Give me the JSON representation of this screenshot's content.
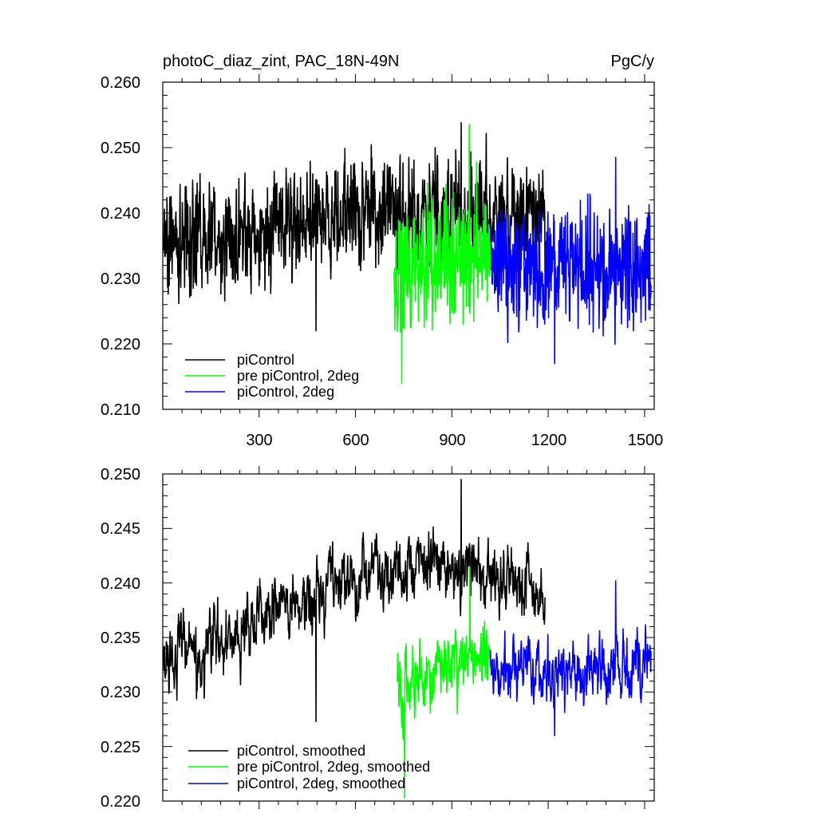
{
  "chart_data": [
    {
      "type": "line",
      "title": "photoC_diaz_zint, PAC_18N-49N",
      "units": "PgC/y",
      "xlim": [
        0,
        1530
      ],
      "ylim": [
        0.21,
        0.26
      ],
      "xticks": [
        300,
        600,
        900,
        1200,
        1500
      ],
      "xtick_labels": [
        "300",
        "600",
        "900",
        "1200",
        "1500"
      ],
      "yticks": [
        0.21,
        0.22,
        0.23,
        0.24,
        0.25,
        0.26
      ],
      "ytick_labels": [
        "0.210",
        "0.220",
        "0.230",
        "0.240",
        "0.250",
        "0.260"
      ],
      "legend_position": "bottom-left",
      "series": [
        {
          "name": "piControl",
          "color": "#000000",
          "x_start": 1,
          "x_end": 1190,
          "mean": 0.2375,
          "amplitude": 0.0055,
          "range": [
            0.222,
            0.2538
          ],
          "trend": [
            [
              0,
              0.2355
            ],
            [
              300,
              0.237
            ],
            [
              600,
              0.24
            ],
            [
              900,
              0.2405
            ],
            [
              1190,
              0.2385
            ]
          ]
        },
        {
          "name": "pre piControl, 2deg",
          "color": "#00ff00",
          "x_start": 720,
          "x_end": 1020,
          "mean": 0.232,
          "amplitude": 0.0065,
          "range": [
            0.214,
            0.2535
          ],
          "trend": [
            [
              720,
              0.231
            ],
            [
              870,
              0.233
            ],
            [
              1020,
              0.2345
            ]
          ]
        },
        {
          "name": "piControl, 2deg",
          "color": "#0000ff",
          "x_start": 1020,
          "x_end": 1520,
          "mean": 0.2315,
          "amplitude": 0.0058,
          "range": [
            0.217,
            0.2485
          ],
          "trend": [
            [
              1020,
              0.232
            ],
            [
              1270,
              0.2315
            ],
            [
              1520,
              0.2315
            ]
          ]
        }
      ]
    },
    {
      "type": "line",
      "title": "",
      "xlim": [
        0,
        1530
      ],
      "ylim": [
        0.22,
        0.25
      ],
      "xticks": [
        300,
        600,
        900,
        1200,
        1500
      ],
      "xtick_labels": [],
      "yticks": [
        0.22,
        0.225,
        0.23,
        0.235,
        0.24,
        0.245,
        0.25
      ],
      "ytick_labels": [
        "0.220",
        "0.225",
        "0.230",
        "0.235",
        "0.240",
        "0.245",
        "0.250"
      ],
      "legend_position": "bottom-left",
      "series": [
        {
          "name": "piControl, smoothed",
          "color": "#000000",
          "x_start": 1,
          "x_end": 1190,
          "mean": 0.2375,
          "amplitude": 0.0027,
          "range": [
            0.2273,
            0.2495
          ],
          "trend": [
            [
              0,
              0.2335
            ],
            [
              120,
              0.2335
            ],
            [
              300,
              0.237
            ],
            [
              500,
              0.2385
            ],
            [
              650,
              0.241
            ],
            [
              900,
              0.2415
            ],
            [
              1100,
              0.24
            ],
            [
              1190,
              0.238
            ]
          ]
        },
        {
          "name": "pre piControl, 2deg, smoothed",
          "color": "#00ff00",
          "x_start": 730,
          "x_end": 1020,
          "mean": 0.232,
          "amplitude": 0.003,
          "range": [
            0.2203,
            0.2415
          ],
          "trend": [
            [
              730,
              0.23
            ],
            [
              870,
              0.232
            ],
            [
              1020,
              0.2335
            ]
          ]
        },
        {
          "name": "piControl, 2deg, smoothed",
          "color": "#0000ff",
          "x_start": 1020,
          "x_end": 1520,
          "mean": 0.232,
          "amplitude": 0.0027,
          "range": [
            0.226,
            0.2402
          ],
          "trend": [
            [
              1020,
              0.232
            ],
            [
              1270,
              0.2315
            ],
            [
              1520,
              0.233
            ]
          ]
        }
      ]
    }
  ]
}
